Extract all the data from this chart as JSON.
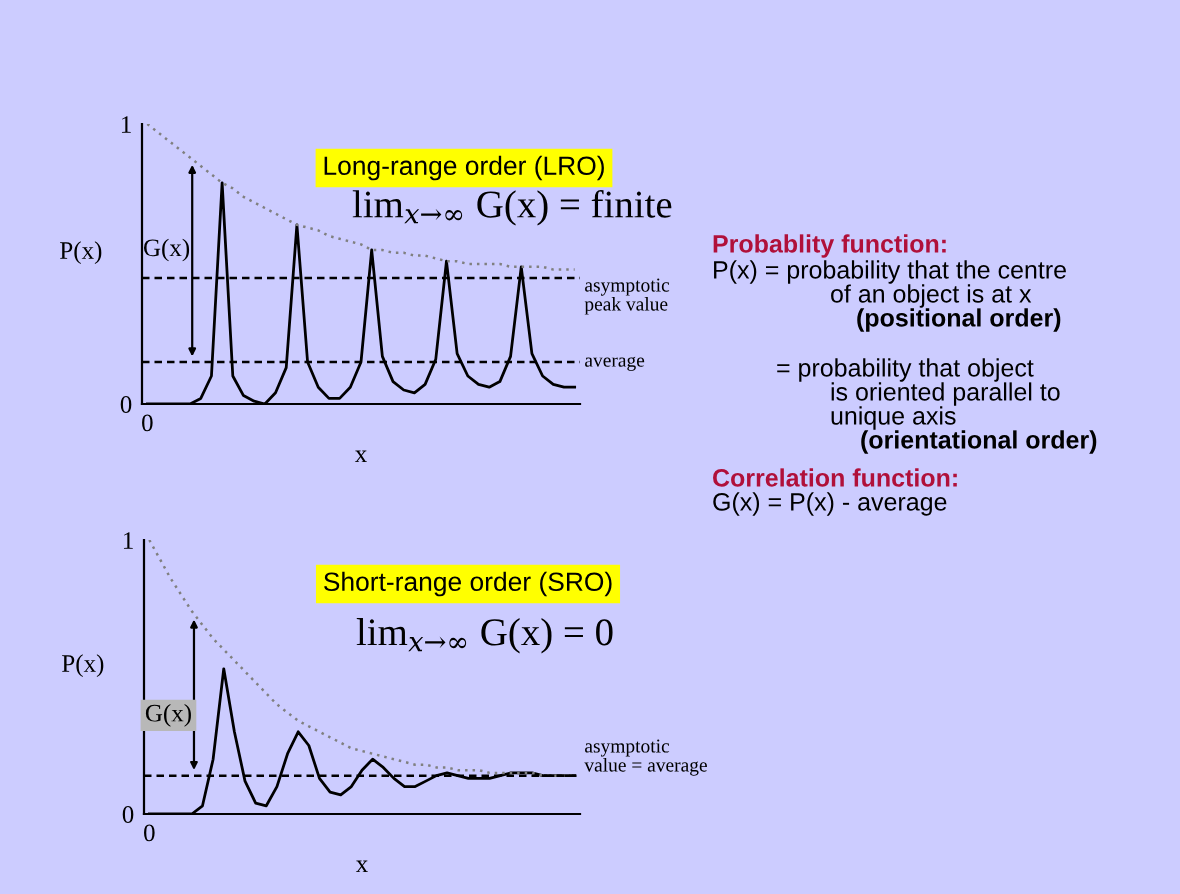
{
  "chart_data": [
    {
      "type": "line",
      "title": "Long-range order (LRO)",
      "subtitle": "lim$_{x→∞}$ G(x) = finite",
      "xlabel": "x",
      "ylabel": "P(x)",
      "ylim": [
        0,
        1
      ],
      "yticks": [
        0,
        1
      ],
      "categories": [
        "0",
        null,
        null,
        null,
        null,
        null,
        null,
        null,
        null,
        null,
        null,
        null,
        null,
        null,
        null,
        null,
        null,
        null,
        null,
        null,
        null,
        null,
        null,
        null,
        null,
        null,
        null,
        null,
        null,
        null,
        null,
        null,
        null,
        null,
        null,
        null,
        null,
        null,
        null,
        null,
        null
      ],
      "series": [
        {
          "color": "#000000",
          "line_style": "solid",
          "values": [
            0,
            0,
            0,
            0,
            0,
            0.02,
            0.1,
            0.79,
            0.1,
            0.03,
            0.01,
            0,
            0.04,
            0.13,
            0.64,
            0.15,
            0.06,
            0.02,
            0.02,
            0.06,
            0.15,
            0.55,
            0.17,
            0.08,
            0.05,
            0.04,
            0.07,
            0.16,
            0.51,
            0.18,
            0.1,
            0.07,
            0.06,
            0.08,
            0.17,
            0.49,
            0.18,
            0.1,
            0.07,
            0.06,
            0.06
          ]
        },
        {
          "color": "#808080",
          "line_style": "dotted",
          "values": [
            1,
            0.97,
            0.94,
            0.91,
            0.88,
            0.85,
            0.82,
            0.79,
            0.77,
            0.74,
            0.72,
            0.7,
            0.68,
            0.66,
            0.64,
            0.63,
            0.62,
            0.6,
            0.59,
            0.58,
            0.57,
            0.55,
            0.55,
            0.54,
            0.54,
            0.53,
            0.53,
            0.52,
            0.51,
            0.51,
            0.5,
            0.5,
            0.5,
            0.5,
            0.49,
            0.49,
            0.49,
            0.49,
            0.48,
            0.48,
            0.48
          ]
        }
      ],
      "ref_lines": [
        {
          "axis": "y",
          "value": 0.45,
          "label": "asymptotic\npeak value",
          "color": "#000000",
          "line_style": "dashed"
        },
        {
          "axis": "y",
          "value": 0.15,
          "label": "average",
          "color": "#000000",
          "line_style": "dashed"
        }
      ],
      "annotations": [
        "G(x)"
      ]
    },
    {
      "type": "line",
      "title": "Short-range order (SRO)",
      "subtitle": "lim$_{x→∞}$ G(x) = 0",
      "xlabel": "x",
      "ylabel": "P(x)",
      "ylim": [
        0,
        1
      ],
      "yticks": [
        0,
        1
      ],
      "categories": [
        "0",
        null,
        null,
        null,
        null,
        null,
        null,
        null,
        null,
        null,
        null,
        null,
        null,
        null,
        null,
        null,
        null,
        null,
        null,
        null,
        null,
        null,
        null,
        null,
        null,
        null,
        null,
        null,
        null,
        null,
        null,
        null,
        null,
        null,
        null,
        null,
        null,
        null,
        null,
        null,
        null
      ],
      "series": [
        {
          "color": "#000000",
          "line_style": "solid",
          "values": [
            0,
            0,
            0,
            0,
            0,
            0.03,
            0.2,
            0.53,
            0.3,
            0.12,
            0.04,
            0.03,
            0.1,
            0.22,
            0.3,
            0.25,
            0.13,
            0.08,
            0.07,
            0.1,
            0.16,
            0.2,
            0.17,
            0.13,
            0.1,
            0.1,
            0.12,
            0.14,
            0.15,
            0.14,
            0.13,
            0.13,
            0.13,
            0.14,
            0.15,
            0.15,
            0.15,
            0.14,
            0.14,
            0.14,
            0.14
          ]
        },
        {
          "color": "#808080",
          "line_style": "dotted",
          "values": [
            1,
            0.93,
            0.86,
            0.8,
            0.74,
            0.69,
            0.64,
            0.6,
            0.56,
            0.52,
            0.48,
            0.44,
            0.4,
            0.37,
            0.34,
            0.32,
            0.3,
            0.28,
            0.26,
            0.24,
            0.23,
            0.22,
            0.21,
            0.2,
            0.19,
            0.18,
            0.18,
            0.17,
            0.17,
            0.16,
            0.16,
            0.16,
            0.15,
            0.15,
            0.15,
            0.15,
            0.15,
            0.14,
            0.14,
            0.14,
            0.14
          ]
        }
      ],
      "ref_lines": [
        {
          "axis": "y",
          "value": 0.14,
          "label": "asymptotic\nvalue = average",
          "color": "#000000",
          "line_style": "dashed"
        }
      ],
      "annotations": [
        "G(x)"
      ]
    },
    {
      "type": "other",
      "annotations": [
        "Probablity function:",
        "P(x) = probability that the centre",
        "of an object is at x",
        "(positional order)",
        "= probability that object",
        "is oriented parallel to",
        "unique axis",
        "(orientational order)",
        "Correlation function:",
        "G(x) = P(x) - average"
      ]
    }
  ]
}
